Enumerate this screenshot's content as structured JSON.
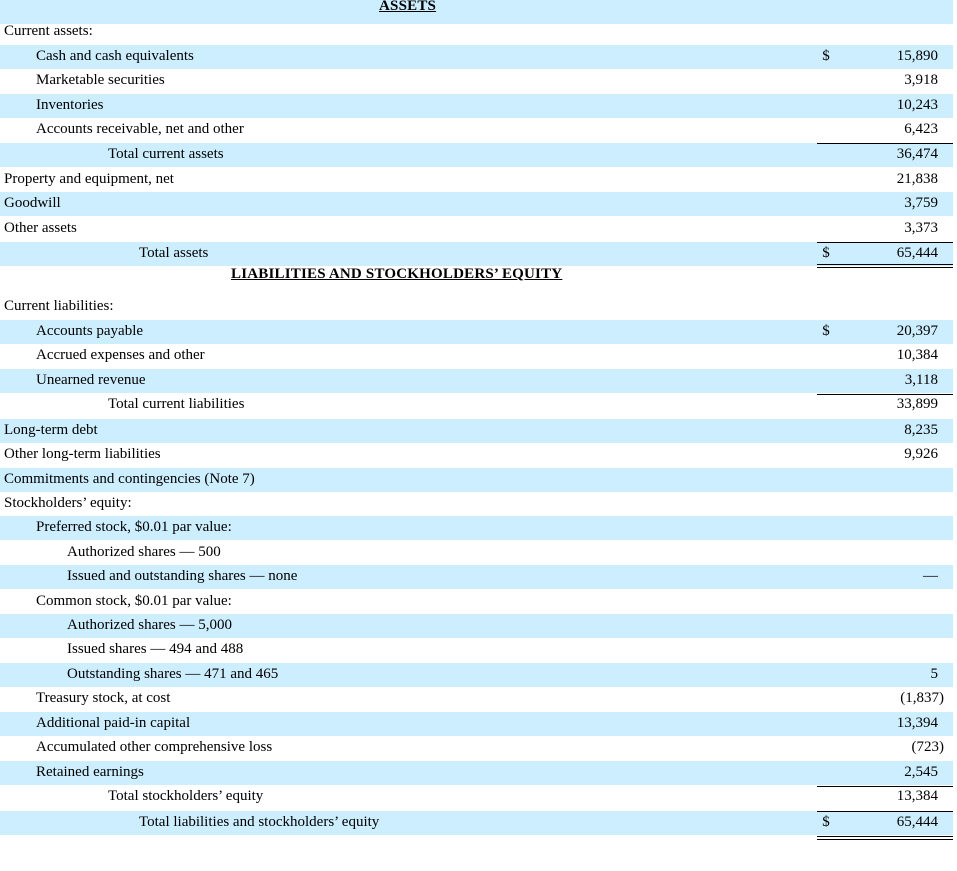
{
  "statement": {
    "assets_heading": "ASSETS",
    "liabilities_heading": "LIABILITIES AND STOCKHOLDERS’ EQUITY",
    "rows": [
      {
        "label": "Current assets:",
        "dollar": "",
        "amount": ""
      },
      {
        "label": "Cash and cash equivalents",
        "dollar": "$",
        "amount": "15,890"
      },
      {
        "label": "Marketable securities",
        "dollar": "",
        "amount": "3,918"
      },
      {
        "label": "Inventories",
        "dollar": "",
        "amount": "10,243"
      },
      {
        "label": "Accounts receivable, net and other",
        "dollar": "",
        "amount": "6,423"
      },
      {
        "label": "Total current assets",
        "dollar": "",
        "amount": "36,474"
      },
      {
        "label": "Property and equipment, net",
        "dollar": "",
        "amount": "21,838"
      },
      {
        "label": "Goodwill",
        "dollar": "",
        "amount": "3,759"
      },
      {
        "label": "Other assets",
        "dollar": "",
        "amount": "3,373"
      },
      {
        "label": "Total assets",
        "dollar": "$",
        "amount": "65,444"
      },
      {
        "label": "Current liabilities:",
        "dollar": "",
        "amount": ""
      },
      {
        "label": "Accounts payable",
        "dollar": "$",
        "amount": "20,397"
      },
      {
        "label": "Accrued expenses and other",
        "dollar": "",
        "amount": "10,384"
      },
      {
        "label": "Unearned revenue",
        "dollar": "",
        "amount": "3,118"
      },
      {
        "label": "Total current liabilities",
        "dollar": "",
        "amount": "33,899"
      },
      {
        "label": "Long-term debt",
        "dollar": "",
        "amount": "8,235"
      },
      {
        "label": "Other long-term liabilities",
        "dollar": "",
        "amount": "9,926"
      },
      {
        "label": "Commitments and contingencies (Note 7)",
        "dollar": "",
        "amount": ""
      },
      {
        "label": "Stockholders’ equity:",
        "dollar": "",
        "amount": ""
      },
      {
        "label": "Preferred stock, $0.01 par value:",
        "dollar": "",
        "amount": ""
      },
      {
        "label": "Authorized shares — 500",
        "dollar": "",
        "amount": ""
      },
      {
        "label": "Issued and outstanding shares — none",
        "dollar": "",
        "amount": "—"
      },
      {
        "label": "Common stock, $0.01 par value:",
        "dollar": "",
        "amount": ""
      },
      {
        "label": "Authorized shares — 5,000",
        "dollar": "",
        "amount": ""
      },
      {
        "label": "Issued shares — 494 and 488",
        "dollar": "",
        "amount": ""
      },
      {
        "label": "Outstanding shares — 471 and 465",
        "dollar": "",
        "amount": "5"
      },
      {
        "label": "Treasury stock, at cost",
        "dollar": "",
        "amount": "(1,837)"
      },
      {
        "label": "Additional paid-in capital",
        "dollar": "",
        "amount": "13,394"
      },
      {
        "label": "Accumulated other comprehensive loss",
        "dollar": "",
        "amount": "(723)"
      },
      {
        "label": "Retained earnings",
        "dollar": "",
        "amount": "2,545"
      },
      {
        "label": "Total stockholders’ equity",
        "dollar": "",
        "amount": "13,384"
      },
      {
        "label": "Total liabilities and stockholders’ equity",
        "dollar": "$",
        "amount": "65,444"
      }
    ]
  }
}
